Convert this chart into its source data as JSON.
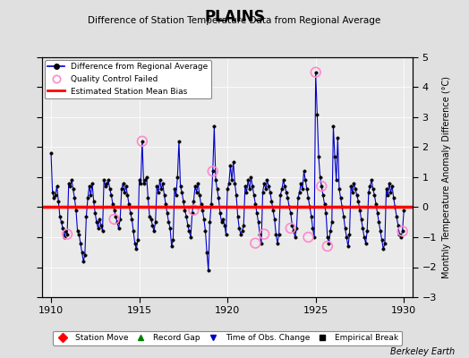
{
  "title": "PLAINS",
  "subtitle": "Difference of Station Temperature Data from Regional Average",
  "ylabel": "Monthly Temperature Anomaly Difference (°C)",
  "credit": "Berkeley Earth",
  "xlim": [
    1909.5,
    1930.5
  ],
  "ylim": [
    -3,
    5
  ],
  "yticks": [
    -3,
    -2,
    -1,
    0,
    1,
    2,
    3,
    4,
    5
  ],
  "xticks": [
    1910,
    1915,
    1920,
    1925,
    1930
  ],
  "bias_value": 0.0,
  "background_color": "#e0e0e0",
  "plot_bg_color": "#eaeaea",
  "line_color": "#0000cc",
  "bias_color": "#ff0000",
  "qc_color": "#ff88cc",
  "data_x": [
    1910.0,
    1910.083,
    1910.167,
    1910.25,
    1910.333,
    1910.417,
    1910.5,
    1910.583,
    1910.667,
    1910.75,
    1910.833,
    1910.917,
    1911.0,
    1911.083,
    1911.167,
    1911.25,
    1911.333,
    1911.417,
    1911.5,
    1911.583,
    1911.667,
    1911.75,
    1911.833,
    1911.917,
    1912.0,
    1912.083,
    1912.167,
    1912.25,
    1912.333,
    1912.417,
    1912.5,
    1912.583,
    1912.667,
    1912.75,
    1912.833,
    1912.917,
    1913.0,
    1913.083,
    1913.167,
    1913.25,
    1913.333,
    1913.417,
    1913.5,
    1913.583,
    1913.667,
    1913.75,
    1913.833,
    1913.917,
    1914.0,
    1914.083,
    1914.167,
    1914.25,
    1914.333,
    1914.417,
    1914.5,
    1914.583,
    1914.667,
    1914.75,
    1914.833,
    1914.917,
    1915.0,
    1915.083,
    1915.167,
    1915.25,
    1915.333,
    1915.417,
    1915.5,
    1915.583,
    1915.667,
    1915.75,
    1915.833,
    1915.917,
    1916.0,
    1916.083,
    1916.167,
    1916.25,
    1916.333,
    1916.417,
    1916.5,
    1916.583,
    1916.667,
    1916.75,
    1916.833,
    1916.917,
    1917.0,
    1917.083,
    1917.167,
    1917.25,
    1917.333,
    1917.417,
    1917.5,
    1917.583,
    1917.667,
    1917.75,
    1917.833,
    1917.917,
    1918.0,
    1918.083,
    1918.167,
    1918.25,
    1918.333,
    1918.417,
    1918.5,
    1918.583,
    1918.667,
    1918.75,
    1918.833,
    1918.917,
    1919.0,
    1919.083,
    1919.167,
    1919.25,
    1919.333,
    1919.417,
    1919.5,
    1919.583,
    1919.667,
    1919.75,
    1919.833,
    1919.917,
    1920.0,
    1920.083,
    1920.167,
    1920.25,
    1920.333,
    1920.417,
    1920.5,
    1920.583,
    1920.667,
    1920.75,
    1920.833,
    1920.917,
    1921.0,
    1921.083,
    1921.167,
    1921.25,
    1921.333,
    1921.417,
    1921.5,
    1921.583,
    1921.667,
    1921.75,
    1921.833,
    1921.917,
    1922.0,
    1922.083,
    1922.167,
    1922.25,
    1922.333,
    1922.417,
    1922.5,
    1922.583,
    1922.667,
    1922.75,
    1922.833,
    1922.917,
    1923.0,
    1923.083,
    1923.167,
    1923.25,
    1923.333,
    1923.417,
    1923.5,
    1923.583,
    1923.667,
    1923.75,
    1923.833,
    1923.917,
    1924.0,
    1924.083,
    1924.167,
    1924.25,
    1924.333,
    1924.417,
    1924.5,
    1924.583,
    1924.667,
    1924.75,
    1924.833,
    1924.917,
    1925.0,
    1925.083,
    1925.167,
    1925.25,
    1925.333,
    1925.417,
    1925.5,
    1925.583,
    1925.667,
    1925.75,
    1925.833,
    1925.917,
    1926.0,
    1926.083,
    1926.167,
    1926.25,
    1926.333,
    1926.417,
    1926.5,
    1926.583,
    1926.667,
    1926.75,
    1926.833,
    1926.917,
    1927.0,
    1927.083,
    1927.167,
    1927.25,
    1927.333,
    1927.417,
    1927.5,
    1927.583,
    1927.667,
    1927.75,
    1927.833,
    1927.917,
    1928.0,
    1928.083,
    1928.167,
    1928.25,
    1928.333,
    1928.417,
    1928.5,
    1928.583,
    1928.667,
    1928.75,
    1928.833,
    1928.917,
    1929.0,
    1929.083,
    1929.167,
    1929.25,
    1929.333,
    1929.417,
    1929.5,
    1929.583,
    1929.667,
    1929.75,
    1929.833,
    1929.917,
    1930.0
  ],
  "data_y": [
    1.8,
    0.5,
    0.3,
    0.4,
    0.7,
    0.2,
    -0.3,
    -0.5,
    -0.7,
    -1.0,
    -0.8,
    -0.9,
    0.8,
    0.7,
    0.9,
    0.6,
    0.3,
    -0.1,
    -0.8,
    -0.9,
    -1.2,
    -1.5,
    -1.8,
    -1.6,
    -0.3,
    0.3,
    0.7,
    0.4,
    0.8,
    0.2,
    -0.2,
    -0.5,
    -0.7,
    -0.4,
    -0.6,
    -0.8,
    0.9,
    0.7,
    0.8,
    0.9,
    0.6,
    0.4,
    0.1,
    -0.1,
    -0.3,
    -0.5,
    -0.7,
    -0.4,
    0.6,
    0.8,
    0.5,
    0.7,
    0.4,
    0.1,
    -0.2,
    -0.4,
    -0.8,
    -1.2,
    -1.4,
    -1.1,
    0.9,
    0.8,
    2.2,
    0.8,
    0.9,
    1.0,
    0.3,
    -0.3,
    -0.4,
    -0.6,
    -0.8,
    -0.5,
    0.7,
    0.5,
    0.9,
    0.6,
    0.8,
    0.4,
    0.1,
    -0.2,
    -0.5,
    -0.7,
    -1.3,
    -1.1,
    0.6,
    0.4,
    1.0,
    2.2,
    0.7,
    0.5,
    0.2,
    -0.1,
    -0.3,
    -0.6,
    -0.8,
    -1.0,
    -0.2,
    0.2,
    0.7,
    0.5,
    0.8,
    0.4,
    0.1,
    -0.1,
    -0.4,
    -0.8,
    -1.5,
    -2.1,
    -0.5,
    0.1,
    1.2,
    2.7,
    0.9,
    0.6,
    0.3,
    -0.2,
    -0.5,
    -0.4,
    -0.6,
    -0.9,
    0.6,
    0.8,
    1.4,
    0.9,
    1.5,
    0.8,
    0.4,
    -0.3,
    -0.7,
    -0.9,
    -0.8,
    -0.6,
    0.7,
    0.5,
    0.9,
    0.6,
    1.0,
    0.7,
    0.4,
    0.1,
    -0.2,
    -0.5,
    -0.9,
    -1.2,
    0.5,
    0.8,
    0.6,
    0.9,
    0.7,
    0.5,
    0.2,
    -0.1,
    -0.4,
    -0.9,
    -1.2,
    -0.9,
    0.4,
    0.6,
    0.9,
    0.7,
    0.5,
    0.3,
    0.0,
    -0.2,
    -0.6,
    -0.8,
    -1.0,
    -0.7,
    0.3,
    0.5,
    0.8,
    0.6,
    1.2,
    0.9,
    0.6,
    0.3,
    0.0,
    -0.3,
    -0.7,
    -1.0,
    4.5,
    3.1,
    1.7,
    1.0,
    0.7,
    0.4,
    0.1,
    -0.2,
    -1.0,
    -1.2,
    -0.8,
    -0.5,
    2.7,
    1.7,
    0.9,
    2.3,
    0.6,
    0.3,
    0.0,
    -0.3,
    -0.7,
    -1.0,
    -1.3,
    -0.9,
    0.7,
    0.5,
    0.8,
    0.6,
    0.4,
    0.2,
    -0.1,
    -0.4,
    -0.7,
    -1.0,
    -1.2,
    -0.8,
    0.5,
    0.7,
    0.9,
    0.6,
    0.4,
    0.1,
    -0.2,
    -0.5,
    -0.8,
    -1.1,
    -1.4,
    -1.2,
    0.6,
    0.4,
    0.8,
    0.5,
    0.7,
    0.3,
    0.0,
    -0.3,
    -0.6,
    -0.9,
    -1.0,
    -0.8,
    -0.1
  ],
  "qc_x": [
    1910.917,
    1913.583,
    1915.167,
    1918.083,
    1919.167,
    1921.583,
    1922.083,
    1923.583,
    1924.583,
    1925.0,
    1925.333,
    1925.667,
    1929.917
  ],
  "qc_y": [
    -0.9,
    -0.4,
    2.2,
    -0.1,
    1.2,
    -1.2,
    -0.9,
    -0.7,
    -1.0,
    4.5,
    0.7,
    -1.3,
    -0.8
  ]
}
